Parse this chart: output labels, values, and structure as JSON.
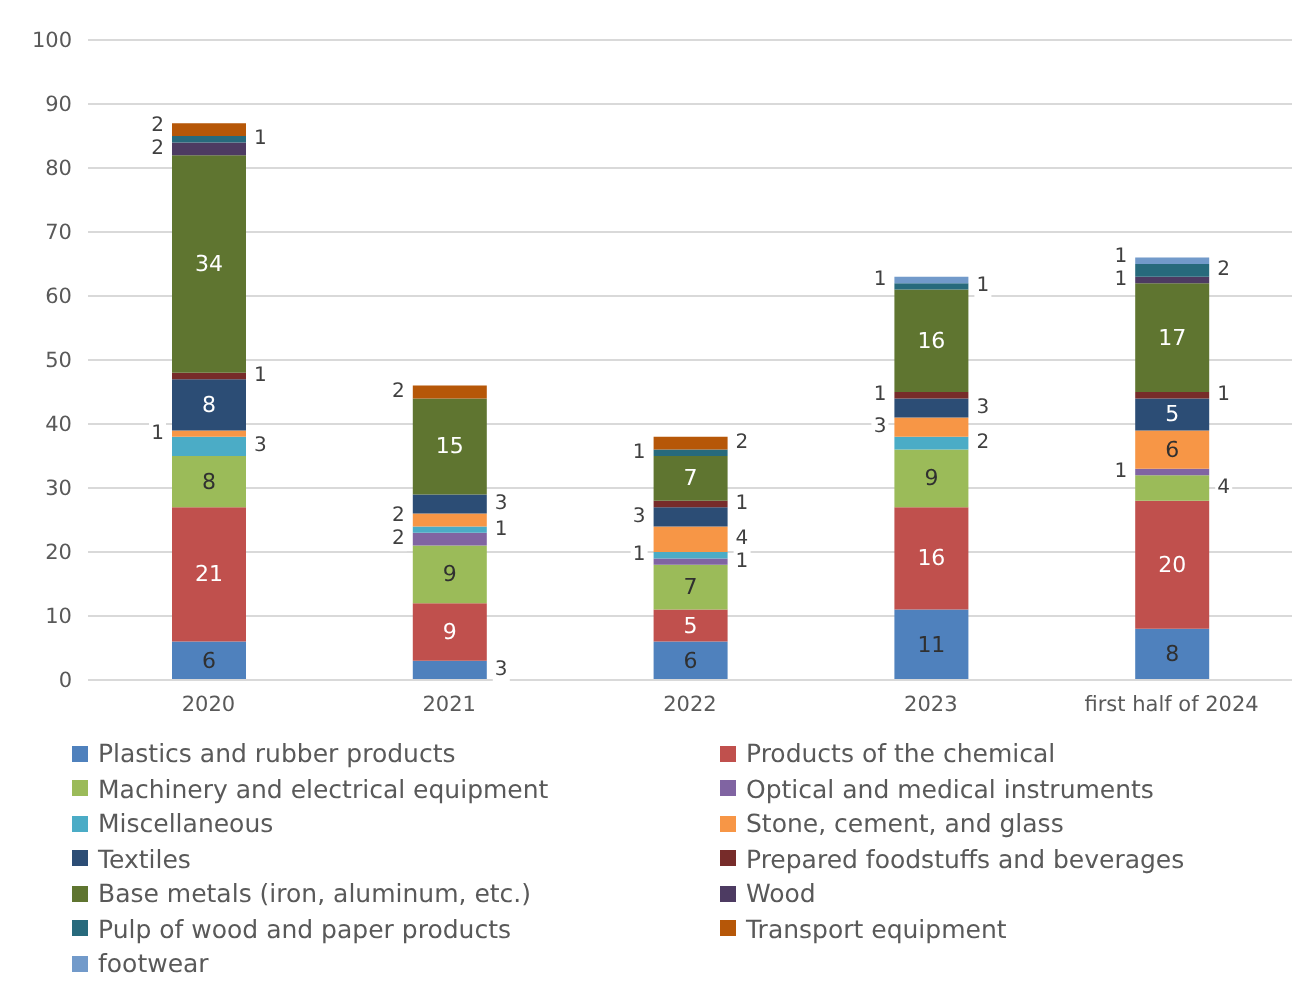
{
  "chart_data": {
    "type": "bar",
    "stacked": true,
    "categories": [
      "2020",
      "2021",
      "2022",
      "2023",
      "first half of 2024"
    ],
    "series": [
      {
        "name": "Plastics and rubber products",
        "color": "#4f81bd",
        "values": [
          6,
          3,
          6,
          11,
          8
        ]
      },
      {
        "name": "Products of the chemical",
        "color": "#c0504d",
        "values": [
          21,
          9,
          5,
          16,
          20
        ]
      },
      {
        "name": "Machinery and electrical equipment",
        "color": "#9bbb59",
        "values": [
          8,
          9,
          7,
          9,
          4
        ]
      },
      {
        "name": "Optical and medical instruments",
        "color": "#8064a2",
        "values": [
          null,
          2,
          1,
          null,
          1
        ]
      },
      {
        "name": "Miscellaneous",
        "color": "#4bacc6",
        "values": [
          3,
          1,
          1,
          2,
          null
        ]
      },
      {
        "name": "Stone, cement, and glass",
        "color": "#f79646",
        "values": [
          1,
          2,
          4,
          3,
          6
        ]
      },
      {
        "name": "Textiles",
        "color": "#2c4d75",
        "values": [
          8,
          3,
          3,
          3,
          5
        ]
      },
      {
        "name": "Prepared foodstuffs and beverages",
        "color": "#772c2a",
        "values": [
          1,
          null,
          1,
          1,
          1
        ]
      },
      {
        "name": "Base metals (iron, aluminum, etc.)",
        "color": "#5f7530",
        "values": [
          34,
          15,
          7,
          16,
          17
        ]
      },
      {
        "name": "Wood",
        "color": "#4d3b62",
        "values": [
          2,
          null,
          null,
          null,
          1
        ]
      },
      {
        "name": "Pulp of wood and paper products",
        "color": "#276a7c",
        "values": [
          1,
          null,
          1,
          1,
          2
        ]
      },
      {
        "name": "Transport equipment",
        "color": "#b65708",
        "values": [
          2,
          2,
          2,
          null,
          null
        ]
      },
      {
        "name": "footwear",
        "color": "#729aca",
        "values": [
          null,
          null,
          null,
          1,
          1
        ]
      }
    ],
    "ylim": [
      0,
      100
    ],
    "yticks": [
      0,
      10,
      20,
      30,
      40,
      50,
      60,
      70,
      80,
      90,
      100
    ],
    "grid": "y",
    "legend": "bottom",
    "data_labels": true
  }
}
